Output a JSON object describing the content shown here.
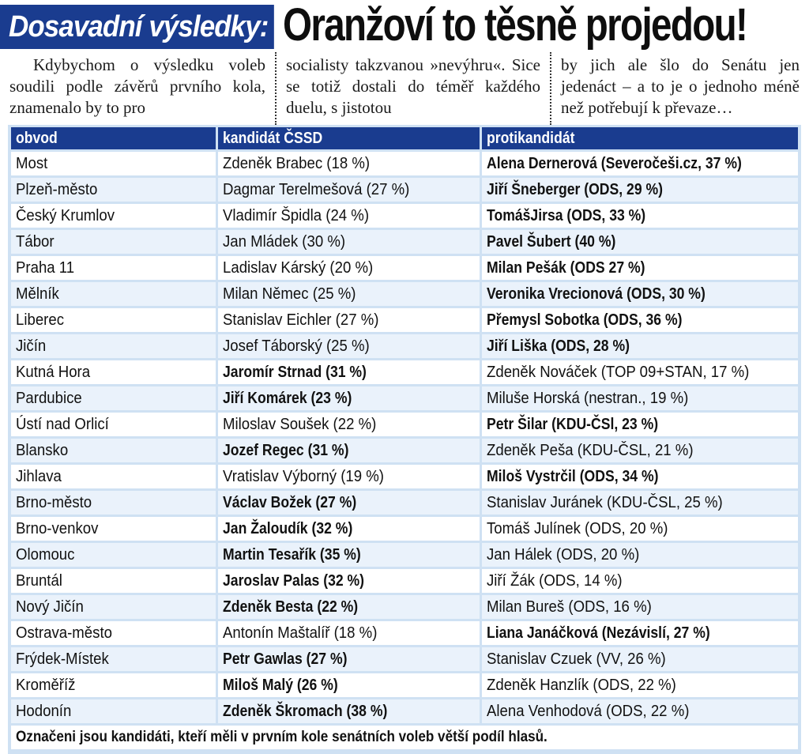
{
  "headline": {
    "kicker": "Dosavadní výsledky:",
    "title": "Oranžoví to těsně projedou!"
  },
  "intro": {
    "col1": "Kdybychom o výsledku voleb soudili podle závěrů prvního kola, znamenalo by to pro",
    "col2": "socialisty takzvanou »nevýhru«. Sice se totiž dostali do téměř každého duelu, s jistotou",
    "col3": "by jich ale šlo do Senátu jen jedenáct – a to je o jednoho méně než potřebují k převaze…"
  },
  "table": {
    "headers": [
      "obvod",
      "kandidát ČSSD",
      "protikandidát"
    ],
    "rows": [
      {
        "obvod": "Most",
        "kandidat": "Zdeněk Brabec (18 %)",
        "protikandidat": "Alena Dernerová (Severočeši.cz, 37 %)",
        "winner": "protikandidat"
      },
      {
        "obvod": "Plzeň-město",
        "kandidat": "Dagmar Terelmešová (27 %)",
        "protikandidat": "Jiří Šneberger (ODS, 29 %)",
        "winner": "protikandidat"
      },
      {
        "obvod": "Český Krumlov",
        "kandidat": "Vladimír Špidla (24 %)",
        "protikandidat": "TomášJirsa (ODS, 33 %)",
        "winner": "protikandidat"
      },
      {
        "obvod": "Tábor",
        "kandidat": "Jan Mládek (30 %)",
        "protikandidat": "Pavel Šubert (40 %)",
        "winner": "protikandidat"
      },
      {
        "obvod": "Praha 11",
        "kandidat": "Ladislav Kárský (20 %)",
        "protikandidat": "Milan Pešák (ODS 27 %)",
        "winner": "protikandidat"
      },
      {
        "obvod": "Mělník",
        "kandidat": "Milan Němec (25 %)",
        "protikandidat": "Veronika Vrecionová (ODS, 30 %)",
        "winner": "protikandidat"
      },
      {
        "obvod": "Liberec",
        "kandidat": "Stanislav Eichler (27 %)",
        "protikandidat": "Přemysl Sobotka (ODS, 36 %)",
        "winner": "protikandidat"
      },
      {
        "obvod": "Jičín",
        "kandidat": "Josef Táborský (25 %)",
        "protikandidat": "Jiří Liška (ODS, 28 %)",
        "winner": "protikandidat"
      },
      {
        "obvod": "Kutná Hora",
        "kandidat": "Jaromír Strnad (31 %)",
        "protikandidat": "Zdeněk Nováček (TOP 09+STAN, 17 %)",
        "winner": "kandidat"
      },
      {
        "obvod": "Pardubice",
        "kandidat": "Jiří Komárek (23 %)",
        "protikandidat": "Miluše Horská (nestran., 19 %)",
        "winner": "kandidat"
      },
      {
        "obvod": "Ústí nad Orlicí",
        "kandidat": "Miloslav Soušek (22 %)",
        "protikandidat": "Petr Šilar (KDU-ČSl, 23 %)",
        "winner": "protikandidat"
      },
      {
        "obvod": "Blansko",
        "kandidat": "Jozef Regec (31 %)",
        "protikandidat": "Zdeněk Peša (KDU-ČSL, 21 %)",
        "winner": "kandidat"
      },
      {
        "obvod": "Jihlava",
        "kandidat": "Vratislav Výborný (19 %)",
        "protikandidat": "Miloš Vystrčil (ODS, 34 %)",
        "winner": "protikandidat"
      },
      {
        "obvod": "Brno-město",
        "kandidat": "Václav Božek (27 %)",
        "protikandidat": "Stanislav Juránek (KDU-ČSL, 25 %)",
        "winner": "kandidat"
      },
      {
        "obvod": "Brno-venkov",
        "kandidat": "Jan Žaloudík (32 %)",
        "protikandidat": "Tomáš Julínek (ODS, 20 %)",
        "winner": "kandidat"
      },
      {
        "obvod": "Olomouc",
        "kandidat": "Martin Tesařík (35 %)",
        "protikandidat": "Jan Hálek (ODS, 20 %)",
        "winner": "kandidat"
      },
      {
        "obvod": "Bruntál",
        "kandidat": "Jaroslav Palas (32 %)",
        "protikandidat": "Jiří Žák (ODS, 14 %)",
        "winner": "kandidat"
      },
      {
        "obvod": "Nový Jičín",
        "kandidat": "Zdeněk Besta (22 %)",
        "protikandidat": "Milan Bureš (ODS, 16 %)",
        "winner": "kandidat"
      },
      {
        "obvod": "Ostrava-město",
        "kandidat": "Antonín Maštalíř (18 %)",
        "protikandidat": "Liana Janáčková (Nezávislí, 27 %)",
        "winner": "protikandidat"
      },
      {
        "obvod": "Frýdek-Místek",
        "kandidat": "Petr Gawlas (27 %)",
        "protikandidat": "Stanislav Czuek (VV, 26 %)",
        "winner": "kandidat"
      },
      {
        "obvod": "Kroměříž",
        "kandidat": "Miloš Malý (26 %)",
        "protikandidat": "Zdeněk Hanzlík (ODS, 22 %)",
        "winner": "kandidat"
      },
      {
        "obvod": "Hodonín",
        "kandidat": "Zdeněk Škromach (38 %)",
        "protikandidat": "Alena Venhodová (ODS, 22 %)",
        "winner": "kandidat"
      }
    ],
    "footnote": "Označeni jsou kandidáti, kteří měli v prvním kole senátních voleb větší podíl hlasů."
  },
  "colors": {
    "accent": "#1a3c8f",
    "table_bg": "#cfe1f3",
    "row_alt": "#eaf2fb"
  }
}
